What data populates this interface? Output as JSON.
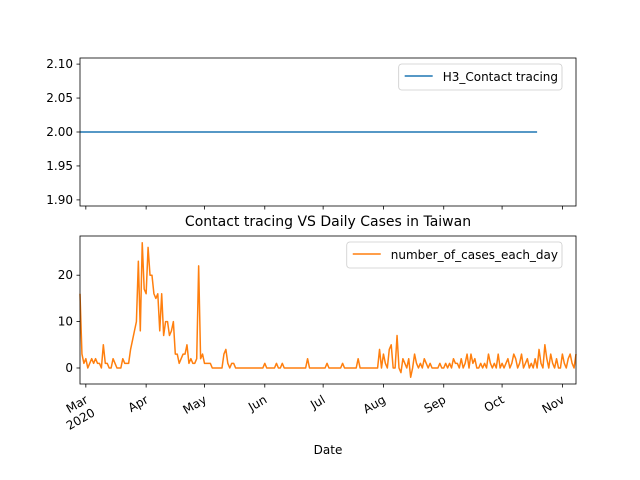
{
  "chart_data": [
    {
      "type": "line",
      "series": [
        {
          "name": "H3_Contact tracing",
          "color": "#1f77b4",
          "values": [
            2,
            2,
            2,
            2,
            2,
            2,
            2,
            2,
            2,
            2,
            2,
            2,
            2,
            2,
            2,
            2,
            2,
            2,
            2,
            2,
            2,
            2,
            2,
            2,
            2,
            2,
            2,
            2,
            2,
            2,
            2,
            2,
            2,
            2,
            2,
            2,
            2,
            2,
            2,
            2,
            2,
            2,
            2,
            2,
            2,
            2,
            2,
            2,
            2,
            2,
            2,
            2,
            2,
            2,
            2,
            2,
            2,
            2,
            2,
            2,
            2,
            2,
            2,
            2,
            2,
            2,
            2,
            2,
            2,
            2,
            2,
            2,
            2,
            2,
            2,
            2,
            2,
            2,
            2,
            2,
            2,
            2,
            2,
            2,
            2,
            2,
            2,
            2,
            2,
            2,
            2,
            2,
            2,
            2,
            2,
            2,
            2,
            2,
            2,
            2,
            2,
            2,
            2,
            2,
            2,
            2,
            2,
            2,
            2,
            2,
            2,
            2,
            2,
            2,
            2,
            2,
            2,
            2,
            2,
            2,
            2,
            2,
            2,
            2,
            2,
            2,
            2,
            2,
            2,
            2,
            2,
            2,
            2,
            2,
            2,
            2,
            2,
            2,
            2,
            2,
            2,
            2,
            2,
            2,
            2,
            2,
            2,
            2,
            2,
            2,
            2,
            2,
            2,
            2,
            2,
            2,
            2,
            2,
            2,
            2,
            2,
            2,
            2,
            2,
            2,
            2,
            2,
            2,
            2,
            2,
            2,
            2,
            2,
            2,
            2,
            2,
            2,
            2,
            2,
            2,
            2,
            2,
            2,
            2,
            2,
            2,
            2,
            2,
            2,
            2,
            2,
            2,
            2,
            2,
            2,
            2,
            2,
            2,
            2,
            2,
            2,
            2,
            2,
            2,
            2,
            2,
            2,
            2,
            2,
            2,
            2,
            2,
            2,
            2,
            2,
            2,
            2,
            2,
            2,
            2,
            2,
            2,
            2,
            2,
            2,
            2,
            2,
            2,
            2,
            2,
            2,
            2,
            2,
            2,
            2,
            2
          ]
        }
      ],
      "xlim": [
        0,
        255
      ],
      "ylim": [
        1.891,
        2.109
      ],
      "yticks": [
        {
          "value": 1.9,
          "label": "1.90"
        },
        1.95,
        {
          "value": 2.0,
          "label": "2.00"
        },
        2.05,
        {
          "value": 2.1,
          "label": "2.10"
        }
      ],
      "legend": "upper right"
    },
    {
      "type": "line",
      "title": "Contact tracing VS Daily Cases in Taiwan",
      "x_label": "Date",
      "series": [
        {
          "name": "number_of_cases_each_day",
          "color": "#ff7f0e",
          "values": [
            16,
            3,
            1,
            2,
            0,
            1,
            2,
            1,
            2,
            1,
            1,
            0,
            5,
            1,
            1,
            0,
            0,
            2,
            1,
            0,
            0,
            0,
            2,
            1,
            1,
            1,
            4,
            6,
            8,
            10,
            23,
            8,
            27,
            17,
            16,
            26,
            20,
            20,
            16,
            15,
            16,
            8,
            16,
            7,
            10,
            10,
            7,
            8,
            10,
            3,
            3,
            1,
            2,
            3,
            3,
            5,
            1,
            2,
            1,
            1,
            2,
            22,
            2,
            3,
            1,
            1,
            1,
            1,
            0,
            0,
            0,
            0,
            0,
            0,
            3,
            4,
            1,
            0,
            1,
            1,
            0,
            0,
            0,
            0,
            0,
            0,
            0,
            0,
            0,
            0,
            0,
            0,
            0,
            0,
            0,
            1,
            0,
            0,
            0,
            0,
            0,
            1,
            0,
            0,
            1,
            0,
            0,
            0,
            0,
            0,
            0,
            0,
            0,
            0,
            0,
            0,
            0,
            2,
            0,
            0,
            0,
            0,
            0,
            0,
            0,
            0,
            0,
            1,
            0,
            0,
            0,
            0,
            0,
            0,
            0,
            1,
            0,
            0,
            0,
            0,
            0,
            0,
            0,
            2,
            0,
            0,
            0,
            0,
            0,
            0,
            0,
            0,
            0,
            0,
            4,
            0,
            3,
            1,
            0,
            4,
            5,
            0,
            0,
            7,
            0,
            -1,
            2,
            1,
            0,
            2,
            -2,
            0,
            3,
            1,
            0,
            1,
            0,
            2,
            1,
            0,
            1,
            0,
            0,
            0,
            0,
            1,
            0,
            0,
            1,
            0,
            1,
            0,
            2,
            1,
            1,
            0,
            2,
            0,
            1,
            3,
            0,
            3,
            1,
            2,
            0,
            0,
            1,
            0,
            1,
            0,
            3,
            1,
            0,
            1,
            0,
            3,
            0,
            1,
            0,
            1,
            2,
            0,
            1,
            3,
            2,
            0,
            1,
            3,
            0,
            1,
            2,
            0,
            1,
            0,
            2,
            0,
            4,
            1,
            0,
            5,
            2,
            0,
            3,
            1,
            0,
            2,
            0,
            0,
            3,
            1,
            0,
            2,
            3,
            1,
            0,
            3
          ]
        }
      ],
      "xlim": [
        0,
        255
      ],
      "xticks": [
        {
          "value": 3,
          "label": "Mar"
        },
        {
          "value": 34,
          "label": "Apr"
        },
        {
          "value": 64,
          "label": "May"
        },
        {
          "value": 95,
          "label": "Jun"
        },
        {
          "value": 125,
          "label": "Jul"
        },
        {
          "value": 156,
          "label": "Aug"
        },
        {
          "value": 187,
          "label": "Sep"
        },
        {
          "value": 217,
          "label": "Oct"
        },
        {
          "value": 248,
          "label": "Nov"
        }
      ],
      "xtick_year": "2020",
      "ylim": [
        -3.45,
        28.45
      ],
      "yticks": [
        0,
        10,
        20
      ],
      "legend": "upper right"
    }
  ]
}
